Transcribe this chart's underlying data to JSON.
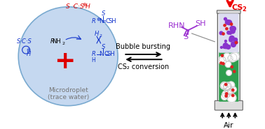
{
  "bg_color": "#ffffff",
  "droplet_color": "#c5d8f0",
  "droplet_edge_color": "#7aaad0",
  "plus_color": "#dd0000",
  "cs2_color": "#ee0000",
  "rhn_sh_color": "#9b30d0",
  "blue_text_color": "#1133cc",
  "red_text_color": "#dd0000",
  "gray_text_color": "#777777",
  "tube_fill_green": "#2e9e4e",
  "tube_fill_light": "#dcdcf0",
  "microdroplet_label": "Microdroplet\n(trace water)",
  "arrow_label_top": "Bubble bursting",
  "arrow_label_bottom": "CS₂ conversion",
  "air_label": "Air"
}
